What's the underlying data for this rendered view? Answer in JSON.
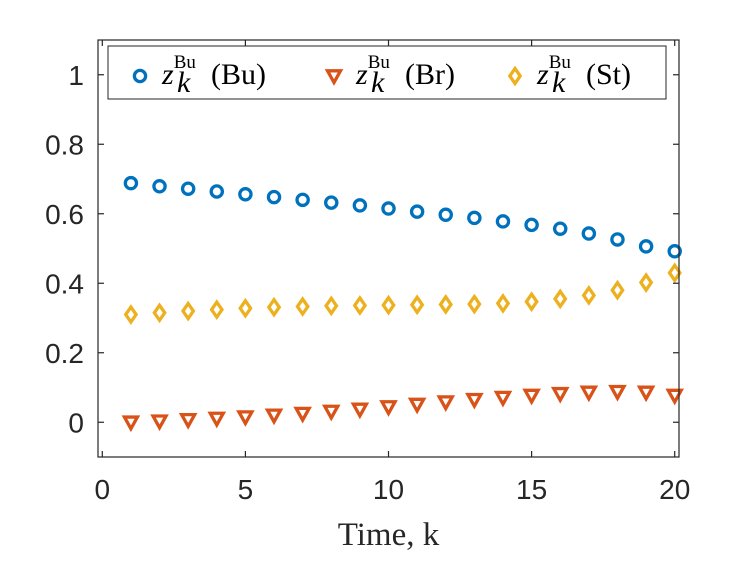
{
  "chart_data": {
    "type": "scatter",
    "title": "",
    "xlabel": "Time, k",
    "ylabel": "",
    "xlim": [
      -0.15,
      20.15
    ],
    "ylim": [
      -0.1,
      1.1
    ],
    "xticks": [
      0,
      5,
      10,
      15,
      20
    ],
    "xtick_labels": [
      "0",
      "5",
      "10",
      "15",
      "20"
    ],
    "yticks": [
      0,
      0.2,
      0.4,
      0.6,
      0.8,
      1
    ],
    "ytick_labels": [
      "0",
      "0.2",
      "0.4",
      "0.6",
      "0.8",
      "1"
    ],
    "grid": false,
    "legend_position": "top",
    "x": [
      1,
      2,
      3,
      4,
      5,
      6,
      7,
      8,
      9,
      10,
      11,
      12,
      13,
      14,
      15,
      16,
      17,
      18,
      19,
      20
    ],
    "series": [
      {
        "name": "z_k^Bu(Bu)",
        "label_var": "z",
        "label_sub": "k",
        "label_sup": "Bu",
        "label_arg": "(Bu)",
        "marker": "circle",
        "color": "#0072BD",
        "values": [
          0.688,
          0.679,
          0.672,
          0.664,
          0.656,
          0.648,
          0.64,
          0.632,
          0.624,
          0.615,
          0.606,
          0.597,
          0.588,
          0.578,
          0.568,
          0.557,
          0.543,
          0.526,
          0.506,
          0.492
        ]
      },
      {
        "name": "z_k^Bu(Br)",
        "label_var": "z",
        "label_sub": "k",
        "label_sup": "Bu",
        "label_arg": "(Br)",
        "marker": "triangle-down",
        "color": "#D95319",
        "values": [
          0.0,
          0.003,
          0.007,
          0.011,
          0.015,
          0.02,
          0.025,
          0.031,
          0.037,
          0.044,
          0.051,
          0.058,
          0.065,
          0.071,
          0.077,
          0.082,
          0.086,
          0.088,
          0.086,
          0.077
        ]
      },
      {
        "name": "z_k^Bu(St)",
        "label_var": "z",
        "label_sub": "k",
        "label_sup": "Bu",
        "label_arg": "(St)",
        "marker": "diamond",
        "color": "#EDB120",
        "values": [
          0.31,
          0.315,
          0.32,
          0.324,
          0.328,
          0.331,
          0.333,
          0.335,
          0.336,
          0.337,
          0.338,
          0.339,
          0.34,
          0.342,
          0.347,
          0.355,
          0.365,
          0.38,
          0.402,
          0.43
        ]
      }
    ]
  }
}
